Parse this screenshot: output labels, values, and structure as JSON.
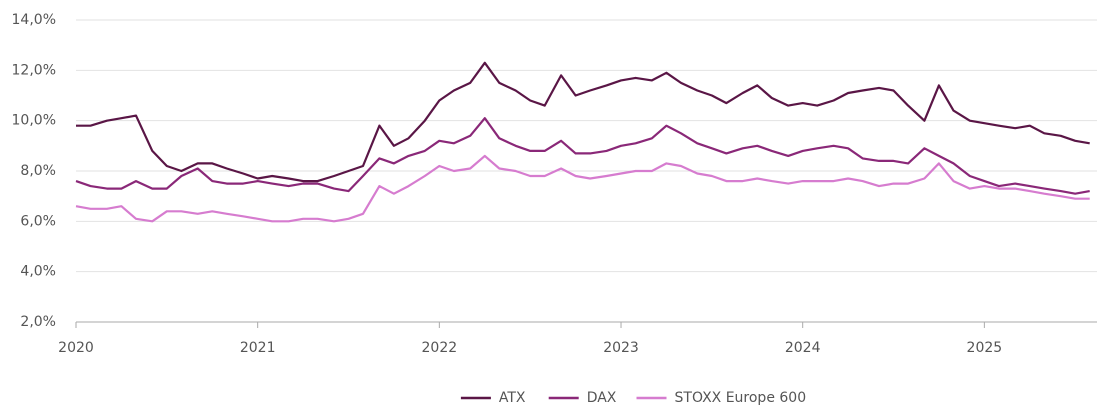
{
  "chart_data": {
    "type": "line",
    "x": [
      2020.0,
      2020.08,
      2020.17,
      2020.25,
      2020.33,
      2020.42,
      2020.5,
      2020.58,
      2020.67,
      2020.75,
      2020.83,
      2020.92,
      2021.0,
      2021.08,
      2021.17,
      2021.25,
      2021.33,
      2021.42,
      2021.5,
      2021.58,
      2021.67,
      2021.75,
      2021.83,
      2021.92,
      2022.0,
      2022.08,
      2022.17,
      2022.25,
      2022.33,
      2022.42,
      2022.5,
      2022.58,
      2022.67,
      2022.75,
      2022.83,
      2022.92,
      2023.0,
      2023.08,
      2023.17,
      2023.25,
      2023.33,
      2023.42,
      2023.5,
      2023.58,
      2023.67,
      2023.75,
      2023.83,
      2023.92,
      2024.0,
      2024.08,
      2024.17,
      2024.25,
      2024.33,
      2024.42,
      2024.5,
      2024.58,
      2024.67,
      2024.75,
      2024.83,
      2024.92,
      2025.0,
      2025.08,
      2025.17,
      2025.25,
      2025.33,
      2025.42,
      2025.5,
      2025.58
    ],
    "series": [
      {
        "name": "ATX",
        "color": "#5a1646",
        "values": [
          9.8,
          9.8,
          10.0,
          10.1,
          10.2,
          8.8,
          8.2,
          8.0,
          8.3,
          8.3,
          8.1,
          7.9,
          7.7,
          7.8,
          7.7,
          7.6,
          7.6,
          7.8,
          8.0,
          8.2,
          9.8,
          9.0,
          9.3,
          10.0,
          10.8,
          11.2,
          11.5,
          12.3,
          11.5,
          11.2,
          10.8,
          10.6,
          11.8,
          11.0,
          11.2,
          11.4,
          11.6,
          11.7,
          11.6,
          11.9,
          11.5,
          11.2,
          11.0,
          10.7,
          11.1,
          11.4,
          10.9,
          10.6,
          10.7,
          10.6,
          10.8,
          11.1,
          11.2,
          11.3,
          11.2,
          10.6,
          10.0,
          11.4,
          10.4,
          10.0,
          9.9,
          9.8,
          9.7,
          9.8,
          9.5,
          9.4,
          9.2,
          9.1
        ]
      },
      {
        "name": "DAX",
        "color": "#8a2878",
        "values": [
          7.6,
          7.4,
          7.3,
          7.3,
          7.6,
          7.3,
          7.3,
          7.8,
          8.1,
          7.6,
          7.5,
          7.5,
          7.6,
          7.5,
          7.4,
          7.5,
          7.5,
          7.3,
          7.2,
          7.8,
          8.5,
          8.3,
          8.6,
          8.8,
          9.2,
          9.1,
          9.4,
          10.1,
          9.3,
          9.0,
          8.8,
          8.8,
          9.2,
          8.7,
          8.7,
          8.8,
          9.0,
          9.1,
          9.3,
          9.8,
          9.5,
          9.1,
          8.9,
          8.7,
          8.9,
          9.0,
          8.8,
          8.6,
          8.8,
          8.9,
          9.0,
          8.9,
          8.5,
          8.4,
          8.4,
          8.3,
          8.9,
          8.6,
          8.3,
          7.8,
          7.6,
          7.4,
          7.5,
          7.4,
          7.3,
          7.2,
          7.1,
          7.2
        ]
      },
      {
        "name": "STOXX Europe 600",
        "color": "#d67ccf",
        "values": [
          6.6,
          6.5,
          6.5,
          6.6,
          6.1,
          6.0,
          6.4,
          6.4,
          6.3,
          6.4,
          6.3,
          6.2,
          6.1,
          6.0,
          6.0,
          6.1,
          6.1,
          6.0,
          6.1,
          6.3,
          7.4,
          7.1,
          7.4,
          7.8,
          8.2,
          8.0,
          8.1,
          8.6,
          8.1,
          8.0,
          7.8,
          7.8,
          8.1,
          7.8,
          7.7,
          7.8,
          7.9,
          8.0,
          8.0,
          8.3,
          8.2,
          7.9,
          7.8,
          7.6,
          7.6,
          7.7,
          7.6,
          7.5,
          7.6,
          7.6,
          7.6,
          7.7,
          7.6,
          7.4,
          7.5,
          7.5,
          7.7,
          8.3,
          7.6,
          7.3,
          7.4,
          7.3,
          7.3,
          7.2,
          7.1,
          7.0,
          6.9,
          6.9
        ]
      }
    ],
    "xlim": [
      2020,
      2025.62
    ],
    "xticks": [
      2020,
      2021,
      2022,
      2023,
      2024,
      2025
    ],
    "ylim": [
      2,
      14
    ],
    "yticks": [
      {
        "value": 2,
        "label": "2,0%"
      },
      {
        "value": 4,
        "label": "4,0%"
      },
      {
        "value": 6,
        "label": "6,0%"
      },
      {
        "value": 8,
        "label": "8,0%"
      },
      {
        "value": 10,
        "label": "10,0%"
      },
      {
        "value": 12,
        "label": "12,0%"
      },
      {
        "value": 14,
        "label": "14,0%"
      }
    ],
    "grid": true,
    "legend": "bottom"
  }
}
